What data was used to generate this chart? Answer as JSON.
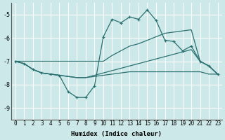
{
  "xlabel": "Humidex (Indice chaleur)",
  "bg_color": "#cce8e8",
  "grid_color": "#ffffff",
  "line_color": "#2a7070",
  "ylim": [
    -9.5,
    -4.5
  ],
  "xlim": [
    -0.5,
    23.5
  ],
  "yticks": [
    -9,
    -8,
    -7,
    -6,
    -5
  ],
  "xticks": [
    0,
    1,
    2,
    3,
    4,
    5,
    6,
    7,
    8,
    9,
    10,
    11,
    12,
    13,
    14,
    15,
    16,
    17,
    18,
    19,
    20,
    21,
    22,
    23
  ],
  "curve_x": [
    0,
    1,
    2,
    3,
    4,
    5,
    6,
    7,
    8,
    9,
    10,
    11,
    12,
    13,
    14,
    15,
    16,
    17,
    18,
    19,
    20,
    21,
    22,
    23
  ],
  "curve_y": [
    -7.0,
    -7.1,
    -7.35,
    -7.5,
    -7.55,
    -7.6,
    -8.3,
    -8.55,
    -8.55,
    -8.05,
    -5.95,
    -5.2,
    -5.35,
    -5.1,
    -5.2,
    -4.8,
    -5.25,
    -6.1,
    -6.15,
    -6.55,
    -6.35,
    -7.0,
    -7.2,
    -7.55
  ],
  "line_upper_x": [
    0,
    10,
    11,
    12,
    13,
    14,
    15,
    16,
    17,
    18,
    19,
    20,
    21,
    22,
    23
  ],
  "line_upper_y": [
    -7.0,
    -7.0,
    -6.75,
    -6.55,
    -6.35,
    -6.25,
    -6.1,
    -5.95,
    -5.8,
    -5.75,
    -5.7,
    -5.65,
    -7.0,
    -7.2,
    -7.55
  ],
  "line_mid_x": [
    0,
    1,
    2,
    3,
    4,
    5,
    6,
    7,
    8,
    9,
    10,
    11,
    12,
    13,
    14,
    15,
    16,
    17,
    18,
    19,
    20,
    21,
    22,
    23
  ],
  "line_mid_y": [
    -7.0,
    -7.1,
    -7.35,
    -7.5,
    -7.55,
    -7.6,
    -7.65,
    -7.7,
    -7.7,
    -7.6,
    -7.5,
    -7.4,
    -7.3,
    -7.2,
    -7.1,
    -7.0,
    -6.9,
    -6.8,
    -6.7,
    -6.6,
    -6.5,
    -7.0,
    -7.2,
    -7.55
  ],
  "line_flat_x": [
    0,
    1,
    2,
    3,
    4,
    5,
    6,
    7,
    8,
    9,
    10,
    11,
    12,
    13,
    14,
    15,
    16,
    17,
    18,
    19,
    20,
    21,
    22,
    23
  ],
  "line_flat_y": [
    -7.0,
    -7.1,
    -7.35,
    -7.5,
    -7.55,
    -7.6,
    -7.65,
    -7.7,
    -7.7,
    -7.65,
    -7.6,
    -7.55,
    -7.5,
    -7.45,
    -7.45,
    -7.45,
    -7.45,
    -7.45,
    -7.45,
    -7.45,
    -7.45,
    -7.45,
    -7.55,
    -7.55
  ]
}
